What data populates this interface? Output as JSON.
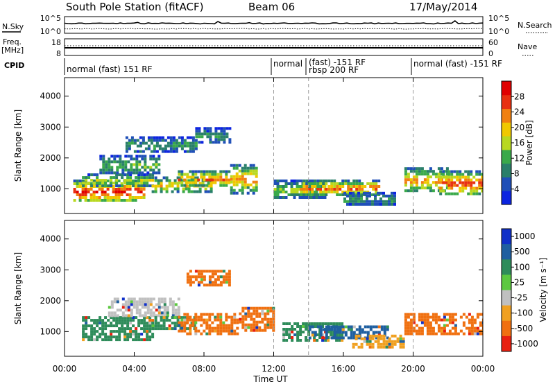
{
  "header": {
    "station": "South Pole Station (fitACF)",
    "beam": "Beam 06",
    "date": "17/May/2014"
  },
  "top_panels": {
    "nsky_label": "N.Sky",
    "nsky_ticks": [
      "10^5",
      "10^0"
    ],
    "nsearch_label": "N.Search",
    "nsearch_ticks": [
      "10^5",
      "10^0"
    ],
    "freq_label_1": "Freq.",
    "freq_label_2": "[MHz]",
    "freq_ticks": [
      "18",
      "8"
    ],
    "nave_label": "Nave",
    "nave_ticks": [
      "60",
      "0"
    ],
    "cpid_label": "CPID",
    "modes": [
      {
        "text": "normal (fast) 151 RF",
        "start_hr": 0.1
      },
      {
        "text": "normal",
        "start_hr": 12.0
      },
      {
        "text": "(fast) -151 RF",
        "start_hr": 14.0
      },
      {
        "text": "rbsp 200 RF",
        "start_hr": 14.0
      },
      {
        "text": "normal (fast) -151 RF",
        "start_hr": 20.0
      }
    ]
  },
  "chart_data": [
    {
      "type": "heatmap",
      "quantity": "Power",
      "ylabel": "Slant Range [km]",
      "ylim": [
        200,
        4600
      ],
      "yticks": [
        "1000",
        "2000",
        "3000",
        "4000"
      ],
      "ytick_values": [
        1000,
        2000,
        3000,
        4000
      ],
      "xlim": [
        0,
        24
      ],
      "colorbar_label": "Power [dB]",
      "colorbar_ticks": [
        "4",
        "8",
        "12",
        "16",
        "20",
        "24",
        "28"
      ],
      "colorbar_values": [
        4,
        8,
        12,
        16,
        20,
        24,
        28
      ],
      "colorbar_range": [
        0,
        32
      ],
      "colorscale": [
        "#0c24e0",
        "#1f4fb8",
        "#2a7f6a",
        "#3aa94a",
        "#b8d820",
        "#f0c800",
        "#f08010",
        "#e83010",
        "#e00000"
      ],
      "echo_bands_hr_km": [
        [
          0.5,
          4.5,
          600,
          1300,
          26
        ],
        [
          1.0,
          5.0,
          1100,
          1500,
          16
        ],
        [
          2.0,
          5.5,
          1500,
          2100,
          12
        ],
        [
          3.5,
          7.5,
          2200,
          2700,
          10
        ],
        [
          5.0,
          8.5,
          900,
          1400,
          18
        ],
        [
          6.5,
          9.5,
          1100,
          1600,
          22
        ],
        [
          7.5,
          9.5,
          2500,
          3000,
          10
        ],
        [
          9.5,
          11.0,
          900,
          1800,
          20
        ],
        [
          12.0,
          15.0,
          700,
          1300,
          14
        ],
        [
          13.5,
          18.0,
          800,
          1300,
          22
        ],
        [
          16.0,
          19.0,
          500,
          900,
          10
        ],
        [
          19.5,
          22.0,
          900,
          1700,
          20
        ],
        [
          21.5,
          24.0,
          800,
          1600,
          24
        ]
      ]
    },
    {
      "type": "heatmap",
      "quantity": "Velocity",
      "ylabel": "Slant Range [km]",
      "ylim": [
        200,
        4600
      ],
      "yticks": [
        "1000",
        "2000",
        "3000",
        "4000"
      ],
      "ytick_values": [
        1000,
        2000,
        3000,
        4000
      ],
      "xlim": [
        0,
        24
      ],
      "colorbar_label": "Velocity [m s⁻¹]",
      "colorbar_ticks": [
        "1000",
        "500",
        "100",
        "25",
        "-25",
        "-100",
        "-500",
        "-1000"
      ],
      "colorscale_top_to_bottom": [
        "#1030c8",
        "#1f5fa0",
        "#2e8c5a",
        "#5cc840",
        "#c0c0c0",
        "#f0a020",
        "#f07010",
        "#e82010"
      ],
      "echo_bands_hr_km": [
        [
          1.0,
          5.0,
          700,
          1500,
          "#2e8c5a"
        ],
        [
          2.5,
          6.5,
          1500,
          2100,
          "#c0c0c0"
        ],
        [
          5.0,
          7.5,
          1100,
          1500,
          "#2e8c5a"
        ],
        [
          6.5,
          10.0,
          900,
          1600,
          "#f07010"
        ],
        [
          7.0,
          9.5,
          2500,
          3000,
          "#f07010"
        ],
        [
          10.0,
          12.0,
          1000,
          1800,
          "#f07010"
        ],
        [
          12.5,
          16.0,
          700,
          1300,
          "#2e8c5a"
        ],
        [
          14.0,
          18.5,
          800,
          1200,
          "#1f5fa0"
        ],
        [
          16.5,
          19.5,
          500,
          900,
          "#f0a020"
        ],
        [
          19.5,
          24.0,
          900,
          1600,
          "#f07010"
        ]
      ]
    }
  ],
  "xaxis": {
    "label": "Time UT",
    "ticks": [
      "00:00",
      "04:00",
      "08:00",
      "12:00",
      "16:00",
      "20:00",
      "00:00"
    ],
    "tick_hours": [
      0,
      4,
      8,
      12,
      16,
      20,
      24
    ],
    "mode_change_hours": [
      12.0,
      14.0,
      20.0
    ]
  }
}
